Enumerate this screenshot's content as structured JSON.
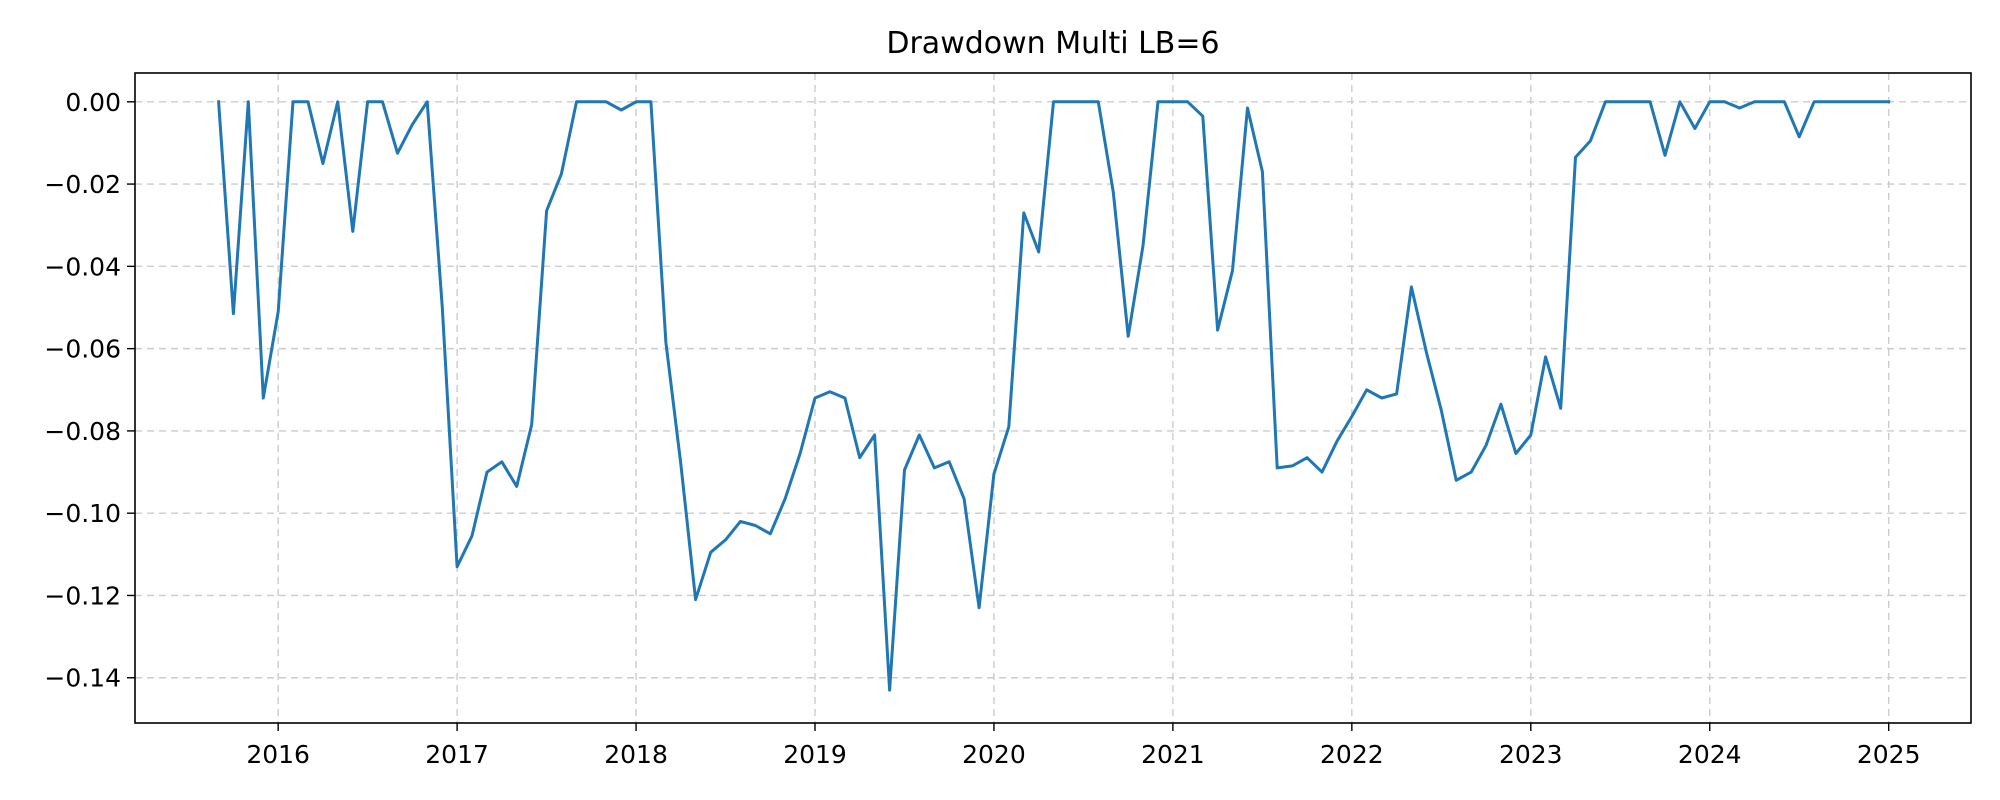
{
  "chart_data": {
    "type": "line",
    "title": "Drawdown Multi LB=6",
    "xlabel": "",
    "ylabel": "",
    "xlim": [
      2015.2,
      2025.46
    ],
    "ylim": [
      -0.151,
      0.007
    ],
    "grid": true,
    "line_color": "#1f77b4",
    "grid_color": "#cccccc",
    "x_ticks": [
      2016,
      2017,
      2018,
      2019,
      2020,
      2021,
      2022,
      2023,
      2024,
      2025
    ],
    "x_tick_labels": [
      "2016",
      "2017",
      "2018",
      "2019",
      "2020",
      "2021",
      "2022",
      "2023",
      "2024",
      "2025"
    ],
    "y_ticks": [
      0.0,
      -0.02,
      -0.04,
      -0.06,
      -0.08,
      -0.1,
      -0.12,
      -0.14
    ],
    "y_tick_labels": [
      "0.00",
      "−0.02",
      "−0.04",
      "−0.06",
      "−0.08",
      "−0.10",
      "−0.12",
      "−0.14"
    ],
    "series": [
      {
        "x": [
          2015.667,
          2015.75,
          2015.833,
          2015.917,
          2016.0,
          2016.083,
          2016.167,
          2016.25,
          2016.333,
          2016.417,
          2016.5,
          2016.583,
          2016.667,
          2016.75,
          2016.833,
          2016.917,
          2017.0,
          2017.083,
          2017.167,
          2017.25,
          2017.333,
          2017.417,
          2017.5,
          2017.583,
          2017.667,
          2017.75,
          2017.833,
          2017.917,
          2018.0,
          2018.083,
          2018.167,
          2018.25,
          2018.333,
          2018.417,
          2018.5,
          2018.583,
          2018.667,
          2018.75,
          2018.833,
          2018.917,
          2019.0,
          2019.083,
          2019.167,
          2019.25,
          2019.333,
          2019.417,
          2019.5,
          2019.583,
          2019.667,
          2019.75,
          2019.833,
          2019.917,
          2020.0,
          2020.083,
          2020.167,
          2020.25,
          2020.333,
          2020.417,
          2020.5,
          2020.583,
          2020.667,
          2020.75,
          2020.833,
          2020.917,
          2021.0,
          2021.083,
          2021.167,
          2021.25,
          2021.333,
          2021.417,
          2021.5,
          2021.583,
          2021.667,
          2021.75,
          2021.833,
          2021.917,
          2022.0,
          2022.083,
          2022.167,
          2022.25,
          2022.333,
          2022.417,
          2022.5,
          2022.583,
          2022.667,
          2022.75,
          2022.833,
          2022.917,
          2023.0,
          2023.083,
          2023.167,
          2023.25,
          2023.333,
          2023.417,
          2023.5,
          2023.583,
          2023.667,
          2023.75,
          2023.833,
          2023.917,
          2024.0,
          2024.083,
          2024.167,
          2024.25,
          2024.333,
          2024.417,
          2024.5,
          2024.583,
          2024.667,
          2024.75,
          2024.833,
          2024.917,
          2025.0
        ],
        "values": [
          0.0,
          -0.0515,
          0.0,
          -0.072,
          -0.051,
          0.0,
          0.0,
          -0.015,
          0.0,
          -0.0315,
          0.0,
          0.0,
          -0.0125,
          -0.0055,
          0.0,
          -0.05,
          -0.113,
          -0.1055,
          -0.09,
          -0.0875,
          -0.0935,
          -0.0785,
          -0.0265,
          -0.0175,
          0.0,
          0.0,
          0.0,
          -0.002,
          0.0,
          0.0,
          -0.0585,
          -0.088,
          -0.121,
          -0.1095,
          -0.1065,
          -0.102,
          -0.103,
          -0.105,
          -0.0965,
          -0.0855,
          -0.072,
          -0.0705,
          -0.072,
          -0.0865,
          -0.081,
          -0.143,
          -0.0895,
          -0.081,
          -0.089,
          -0.0875,
          -0.0965,
          -0.123,
          -0.0905,
          -0.079,
          -0.027,
          -0.0365,
          0.0,
          0.0,
          0.0,
          0.0,
          -0.022,
          -0.057,
          -0.035,
          0.0,
          0.0,
          0.0,
          -0.0035,
          -0.0555,
          -0.041,
          -0.0015,
          -0.017,
          -0.089,
          -0.0885,
          -0.0865,
          -0.09,
          -0.0825,
          -0.0765,
          -0.07,
          -0.072,
          -0.071,
          -0.045,
          -0.061,
          -0.075,
          -0.092,
          -0.09,
          -0.0835,
          -0.0735,
          -0.0855,
          -0.081,
          -0.062,
          -0.0745,
          -0.0135,
          -0.0095,
          0.0,
          0.0,
          0.0,
          0.0,
          -0.013,
          0.0,
          -0.0065,
          0.0,
          0.0,
          -0.0015,
          0.0,
          0.0,
          0.0,
          -0.0085,
          0.0,
          0.0,
          0.0,
          0.0,
          0.0,
          0.0
        ]
      }
    ]
  }
}
